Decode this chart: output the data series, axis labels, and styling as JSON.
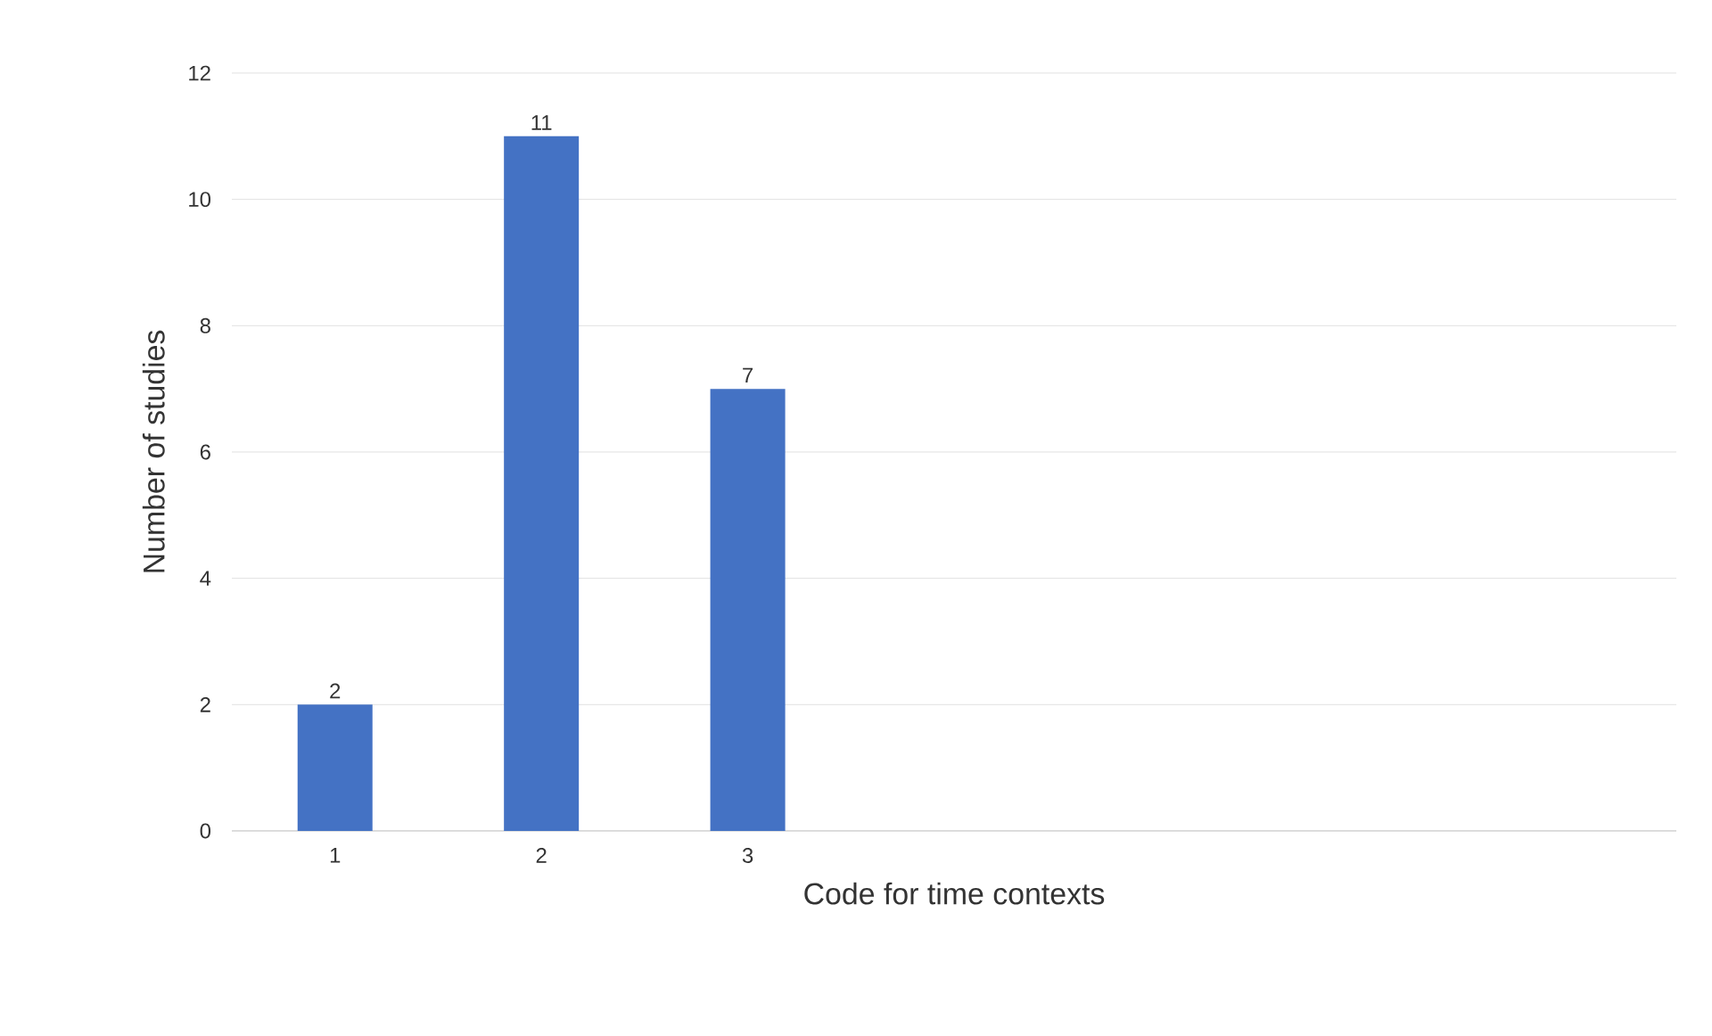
{
  "chart_data": {
    "type": "bar",
    "xlabel": "Code for time contexts",
    "ylabel": "Number of studies",
    "categories": [
      "1",
      "2",
      "3",
      null,
      null,
      null,
      null
    ],
    "values": [
      2,
      11,
      7,
      null,
      null,
      null,
      null
    ],
    "color": "#4472c4",
    "ylim": [
      0,
      12
    ],
    "yticks": [
      0,
      2,
      4,
      6,
      8,
      10,
      12
    ],
    "grid": "y",
    "data_labels": true
  }
}
